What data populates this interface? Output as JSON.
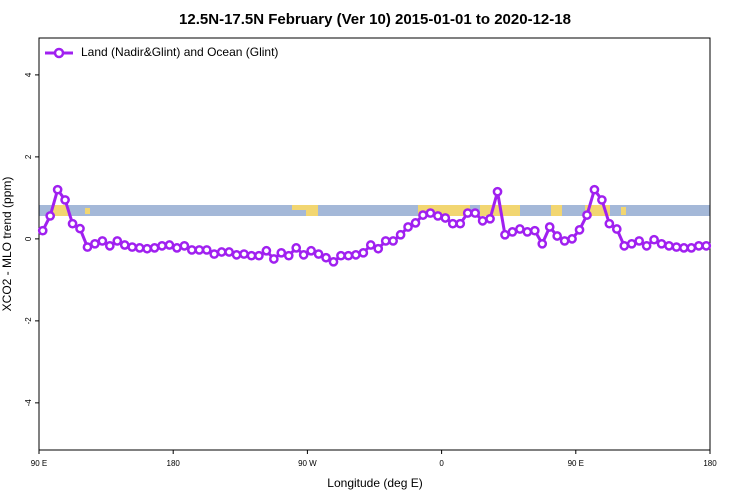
{
  "chart_data": {
    "type": "line",
    "title": "12.5N-17.5N February (Ver 10)   2015-01-01 to 2020-12-18",
    "x_label": "Longitude (deg E)",
    "y_label": "XCO2 - MLO trend (ppm)",
    "xlim": [
      90,
      540
    ],
    "xticks": [
      {
        "value": 90,
        "label": "90 E"
      },
      180,
      {
        "value": 270,
        "label": "90 W"
      },
      {
        "value": 360,
        "label": "0"
      },
      {
        "value": 450,
        "label": "90 E"
      },
      {
        "value": 540,
        "label": "180"
      }
    ],
    "ylim": [
      -5.15,
      4.9
    ],
    "yticks": [
      -4,
      -2,
      0,
      2,
      4
    ],
    "legend": "top-left",
    "x": [
      92.5,
      97.5,
      102.5,
      107.5,
      112.5,
      117.5,
      122.5,
      127.5,
      132.5,
      137.5,
      142.5,
      147.5,
      152.5,
      157.5,
      162.5,
      167.5,
      172.5,
      177.5,
      182.5,
      187.5,
      192.5,
      197.5,
      202.5,
      207.5,
      212.5,
      217.5,
      222.5,
      227.5,
      232.5,
      237.5,
      242.5,
      247.5,
      252.5,
      257.5,
      262.5,
      267.5,
      272.5,
      277.5,
      282.5,
      287.5,
      292.5,
      297.5,
      302.5,
      307.5,
      312.5,
      317.5,
      322.5,
      327.5,
      332.5,
      337.5,
      342.5,
      347.5,
      352.5,
      357.5,
      362.5,
      367.5,
      372.5,
      377.5,
      382.5,
      387.5,
      392.5,
      397.5,
      402.5,
      407.5,
      412.5,
      417.5,
      422.5,
      427.5,
      432.5,
      437.5,
      442.5,
      447.5,
      452.5,
      457.5,
      462.5,
      467.5,
      472.5,
      477.5,
      482.5,
      487.5,
      492.5,
      497.5,
      502.5,
      507.5,
      512.5,
      517.5,
      522.5,
      527.5,
      532.5,
      537.5
    ],
    "series": [
      {
        "name": "Land (Nadir&Glint) and Ocean (Glint)",
        "color": "#a020f0",
        "values": [
          0.2,
          0.56,
          1.2,
          0.95,
          0.37,
          0.25,
          -0.2,
          -0.12,
          -0.05,
          -0.17,
          -0.05,
          -0.15,
          -0.2,
          -0.22,
          -0.24,
          -0.22,
          -0.17,
          -0.15,
          -0.22,
          -0.17,
          -0.27,
          -0.27,
          -0.27,
          -0.37,
          -0.32,
          -0.32,
          -0.39,
          -0.37,
          -0.41,
          -0.41,
          -0.29,
          -0.49,
          -0.34,
          -0.41,
          -0.22,
          -0.39,
          -0.29,
          -0.37,
          -0.46,
          -0.56,
          -0.41,
          -0.41,
          -0.39,
          -0.34,
          -0.15,
          -0.24,
          -0.05,
          -0.05,
          0.1,
          0.29,
          0.39,
          0.58,
          0.63,
          0.56,
          0.51,
          0.37,
          0.37,
          0.63,
          0.63,
          0.44,
          0.49,
          1.15,
          0.1,
          0.17,
          0.24,
          0.17,
          0.2,
          -0.12,
          0.29,
          0.07,
          -0.05,
          0.0,
          0.22,
          0.58,
          1.2,
          0.95,
          0.37,
          0.24,
          -0.17,
          -0.12,
          -0.05,
          -0.17,
          -0.02,
          -0.12,
          -0.17,
          -0.2,
          -0.22,
          -0.22,
          -0.17,
          -0.17
        ]
      }
    ]
  }
}
